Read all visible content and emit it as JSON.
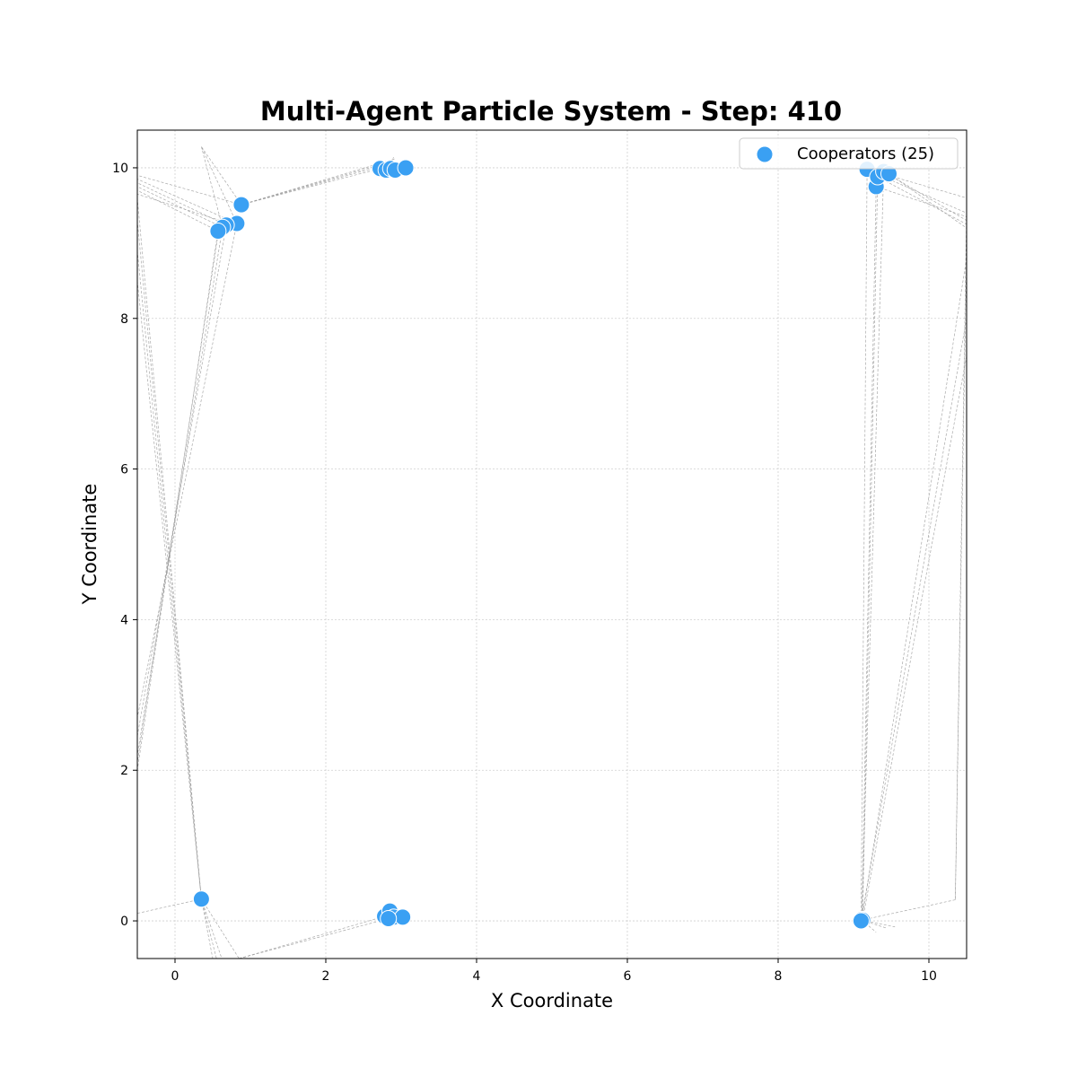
{
  "chart_data": {
    "type": "scatter",
    "title": "Multi-Agent Particle System - Step: 410",
    "xlabel": "X Coordinate",
    "ylabel": "Y Coordinate",
    "xlim": [
      -0.5,
      10.5
    ],
    "ylim": [
      -0.5,
      10.5
    ],
    "xticks": [
      0,
      2,
      4,
      6,
      8,
      10
    ],
    "yticks": [
      0,
      2,
      4,
      6,
      8,
      10
    ],
    "grid": true,
    "legend_position": "top-right",
    "colors": {
      "points": "#3aa0f3",
      "trails": "#9a9a9a",
      "grid": "#d0d0d0"
    },
    "series": [
      {
        "name": "Cooperators (25)",
        "points": [
          {
            "x": 0.88,
            "y": 9.51
          },
          {
            "x": 0.82,
            "y": 9.26
          },
          {
            "x": 0.68,
            "y": 9.24
          },
          {
            "x": 0.63,
            "y": 9.21
          },
          {
            "x": 0.57,
            "y": 9.16
          },
          {
            "x": 2.72,
            "y": 9.99
          },
          {
            "x": 2.8,
            "y": 9.97
          },
          {
            "x": 2.86,
            "y": 9.99
          },
          {
            "x": 2.92,
            "y": 9.97
          },
          {
            "x": 3.06,
            "y": 10.0
          },
          {
            "x": 9.18,
            "y": 9.98
          },
          {
            "x": 9.3,
            "y": 9.75
          },
          {
            "x": 9.32,
            "y": 9.88
          },
          {
            "x": 9.4,
            "y": 9.95
          },
          {
            "x": 9.47,
            "y": 9.92
          },
          {
            "x": 0.35,
            "y": 0.29
          },
          {
            "x": 2.78,
            "y": 0.06
          },
          {
            "x": 2.85,
            "y": 0.13
          },
          {
            "x": 2.9,
            "y": 0.05
          },
          {
            "x": 3.02,
            "y": 0.05
          },
          {
            "x": 2.83,
            "y": 0.03
          },
          {
            "x": 9.11,
            "y": 0.01
          },
          {
            "x": 9.11,
            "y": 0.02
          },
          {
            "x": 9.12,
            "y": 0.01
          },
          {
            "x": 9.1,
            "y": 0.0
          }
        ]
      }
    ],
    "trails": [
      [
        [
          0.88,
          9.51
        ],
        [
          -0.5,
          9.9
        ]
      ],
      [
        [
          0.82,
          9.26
        ],
        [
          -0.5,
          9.85
        ]
      ],
      [
        [
          0.68,
          9.24
        ],
        [
          -0.5,
          9.8
        ]
      ],
      [
        [
          0.63,
          9.21
        ],
        [
          -0.5,
          9.75
        ]
      ],
      [
        [
          0.57,
          9.16
        ],
        [
          -0.5,
          9.7
        ]
      ],
      [
        [
          0.6,
          9.3
        ],
        [
          -0.5,
          9.65
        ]
      ],
      [
        [
          0.88,
          9.51
        ],
        [
          0.35,
          10.28
        ]
      ],
      [
        [
          0.82,
          9.26
        ],
        [
          0.35,
          10.28
        ]
      ],
      [
        [
          0.63,
          9.21
        ],
        [
          0.35,
          10.28
        ]
      ],
      [
        [
          0.88,
          9.51
        ],
        [
          2.72,
          9.99
        ]
      ],
      [
        [
          0.88,
          9.51
        ],
        [
          2.8,
          10.04
        ]
      ],
      [
        [
          0.88,
          9.51
        ],
        [
          2.86,
          10.08
        ]
      ],
      [
        [
          0.88,
          9.51
        ],
        [
          2.92,
          10.12
        ]
      ],
      [
        [
          2.8,
          9.97
        ],
        [
          2.9,
          10.14
        ]
      ],
      [
        [
          0.57,
          9.16
        ],
        [
          -0.5,
          2.0
        ]
      ],
      [
        [
          0.63,
          9.21
        ],
        [
          -0.5,
          2.2
        ]
      ],
      [
        [
          0.68,
          9.24
        ],
        [
          -0.5,
          2.45
        ]
      ],
      [
        [
          0.82,
          9.26
        ],
        [
          -0.5,
          2.7
        ]
      ],
      [
        [
          0.6,
          9.3
        ],
        [
          -0.5,
          2.1
        ]
      ],
      [
        [
          -0.5,
          9.6
        ],
        [
          0.35,
          0.29
        ]
      ],
      [
        [
          -0.5,
          9.3
        ],
        [
          0.35,
          0.29
        ]
      ],
      [
        [
          -0.5,
          8.9
        ],
        [
          0.35,
          0.29
        ]
      ],
      [
        [
          -0.5,
          8.5
        ],
        [
          0.35,
          0.29
        ]
      ],
      [
        [
          0.35,
          0.29
        ],
        [
          -0.5,
          0.1
        ]
      ],
      [
        [
          0.35,
          0.29
        ],
        [
          0.5,
          -0.5
        ]
      ],
      [
        [
          0.35,
          0.29
        ],
        [
          0.55,
          -0.5
        ]
      ],
      [
        [
          0.35,
          0.29
        ],
        [
          0.62,
          -0.5
        ]
      ],
      [
        [
          0.35,
          0.29
        ],
        [
          0.85,
          -0.5
        ]
      ],
      [
        [
          0.85,
          -0.5
        ],
        [
          2.83,
          0.03
        ]
      ],
      [
        [
          0.85,
          -0.5
        ],
        [
          2.78,
          0.06
        ]
      ],
      [
        [
          9.18,
          9.98
        ],
        [
          10.5,
          9.6
        ]
      ],
      [
        [
          9.3,
          9.75
        ],
        [
          10.5,
          9.35
        ]
      ],
      [
        [
          9.32,
          9.88
        ],
        [
          10.5,
          9.25
        ]
      ],
      [
        [
          9.4,
          9.95
        ],
        [
          10.5,
          9.3
        ]
      ],
      [
        [
          9.47,
          9.92
        ],
        [
          10.5,
          9.2
        ]
      ],
      [
        [
          9.35,
          9.9
        ],
        [
          10.5,
          9.4
        ]
      ],
      [
        [
          9.3,
          9.75
        ],
        [
          9.11,
          0.01
        ]
      ],
      [
        [
          9.32,
          9.88
        ],
        [
          9.12,
          0.01
        ]
      ],
      [
        [
          9.18,
          9.98
        ],
        [
          9.1,
          0.0
        ]
      ],
      [
        [
          9.4,
          9.95
        ],
        [
          9.11,
          0.02
        ]
      ],
      [
        [
          10.5,
          9.4
        ],
        [
          10.35,
          0.28
        ]
      ],
      [
        [
          10.5,
          8.9
        ],
        [
          10.35,
          0.28
        ]
      ],
      [
        [
          10.35,
          0.28
        ],
        [
          9.11,
          0.01
        ]
      ],
      [
        [
          10.5,
          8.8
        ],
        [
          9.11,
          0.01
        ]
      ],
      [
        [
          10.5,
          8.0
        ],
        [
          9.1,
          0.0
        ]
      ],
      [
        [
          10.5,
          7.5
        ],
        [
          9.12,
          0.01
        ]
      ],
      [
        [
          9.11,
          0.01
        ],
        [
          9.3,
          -0.15
        ]
      ],
      [
        [
          9.11,
          0.01
        ],
        [
          9.55,
          -0.08
        ]
      ],
      [
        [
          9.11,
          0.01
        ],
        [
          9.45,
          -0.1
        ]
      ]
    ]
  }
}
